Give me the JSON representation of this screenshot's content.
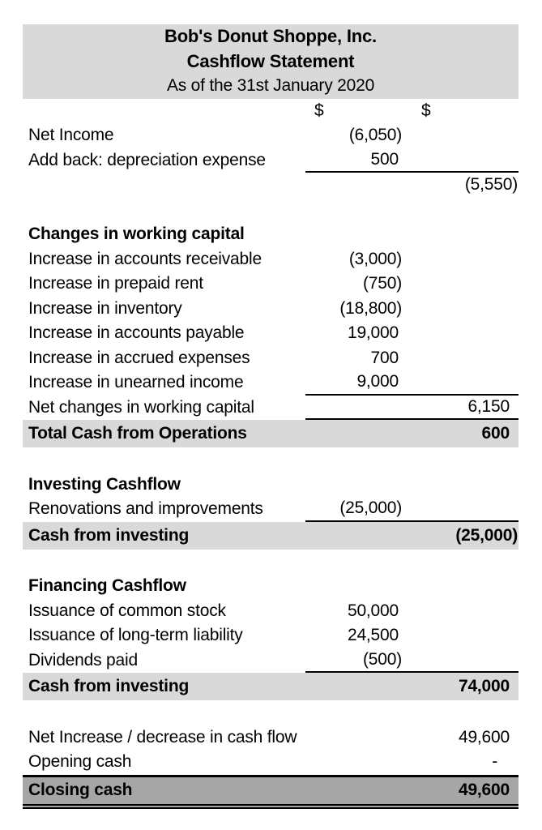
{
  "colors": {
    "title_block_bg": "#d9d9d9",
    "total_row_bg": "#d9d9d9",
    "closing_row_bg": "#a6a6a6",
    "border_color": "#000000"
  },
  "header": {
    "company": "Bob's Donut Shoppe, Inc.",
    "statement": "Cashflow Statement",
    "date_line": "As of the 31st January 2020"
  },
  "columns": {
    "col1_symbol": "$",
    "col2_symbol": "$"
  },
  "rows": {
    "net_income": {
      "label": "Net Income",
      "col1": "(6,050)"
    },
    "depreciation": {
      "label": "Add back: depreciation expense",
      "col1": "500"
    },
    "operating_subtotal": {
      "col2": "(5,550)"
    },
    "wc_header": {
      "label": "Changes in working capital"
    },
    "accounts_receivable": {
      "label": "Increase in accounts receivable",
      "col1": "(3,000)"
    },
    "prepaid_rent": {
      "label": "Increase in prepaid rent",
      "col1": "(750)"
    },
    "inventory": {
      "label": "Increase in inventory",
      "col1": "(18,800)"
    },
    "accounts_payable": {
      "label": "Increase in accounts payable",
      "col1": "19,000"
    },
    "accrued_expenses": {
      "label": "Increase in accrued expenses",
      "col1": "700"
    },
    "unearned_income": {
      "label": "Increase in unearned income",
      "col1": "9,000"
    },
    "net_wc": {
      "label": "Net changes in working capital",
      "col2": "6,150"
    },
    "total_operations": {
      "label": "Total Cash from Operations",
      "col2": "600"
    },
    "investing_header": {
      "label": "Investing Cashflow"
    },
    "renovations": {
      "label": "Renovations and improvements",
      "col1": "(25,000)"
    },
    "cash_from_investing": {
      "label": "Cash from investing",
      "col2": "(25,000)"
    },
    "financing_header": {
      "label": "Financing Cashflow"
    },
    "common_stock": {
      "label": "Issuance of common stock",
      "col1": "50,000"
    },
    "long_term_liability": {
      "label": "Issuance of long-term liability",
      "col1": "24,500"
    },
    "dividends_paid": {
      "label": "Dividends paid",
      "col1": "(500)"
    },
    "cash_from_financing": {
      "label": "Cash from investing",
      "col2": "74,000"
    },
    "net_increase": {
      "label": "Net Increase / decrease in cash flow",
      "col2": "49,600"
    },
    "opening_cash": {
      "label": "Opening cash",
      "col2": "-"
    },
    "closing_cash": {
      "label": "Closing cash",
      "col2": "49,600"
    }
  }
}
